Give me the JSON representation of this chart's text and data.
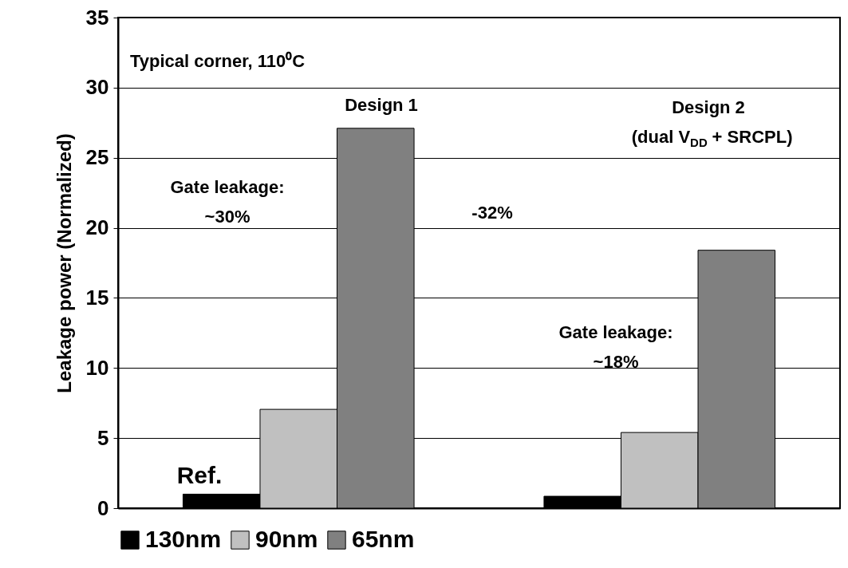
{
  "chart_data": {
    "type": "bar",
    "ylabel": "Leakage power (Normalized)",
    "categories": [
      null,
      null
    ],
    "series": [
      {
        "name": "130nm",
        "color": "#000000",
        "values": [
          1.0,
          0.85
        ]
      },
      {
        "name": "90nm",
        "color": "#c0c0c0",
        "values": [
          7.05,
          5.4
        ]
      },
      {
        "name": "65nm",
        "color": "#808080",
        "values": [
          27.1,
          18.4
        ]
      }
    ],
    "ylim": [
      0,
      35
    ],
    "yticks": [
      0,
      5,
      10,
      15,
      20,
      25,
      30,
      35
    ],
    "grid": "y",
    "legend": "bottom",
    "annotations": [
      "Typical corner, 110⁰C",
      "Design 1",
      "Design 2\n(dual V$_{DD}$ + SRCPL)",
      "Gate leakage:\n~30%",
      "-32%",
      "Gate leakage:\n~18%",
      "Ref."
    ]
  }
}
